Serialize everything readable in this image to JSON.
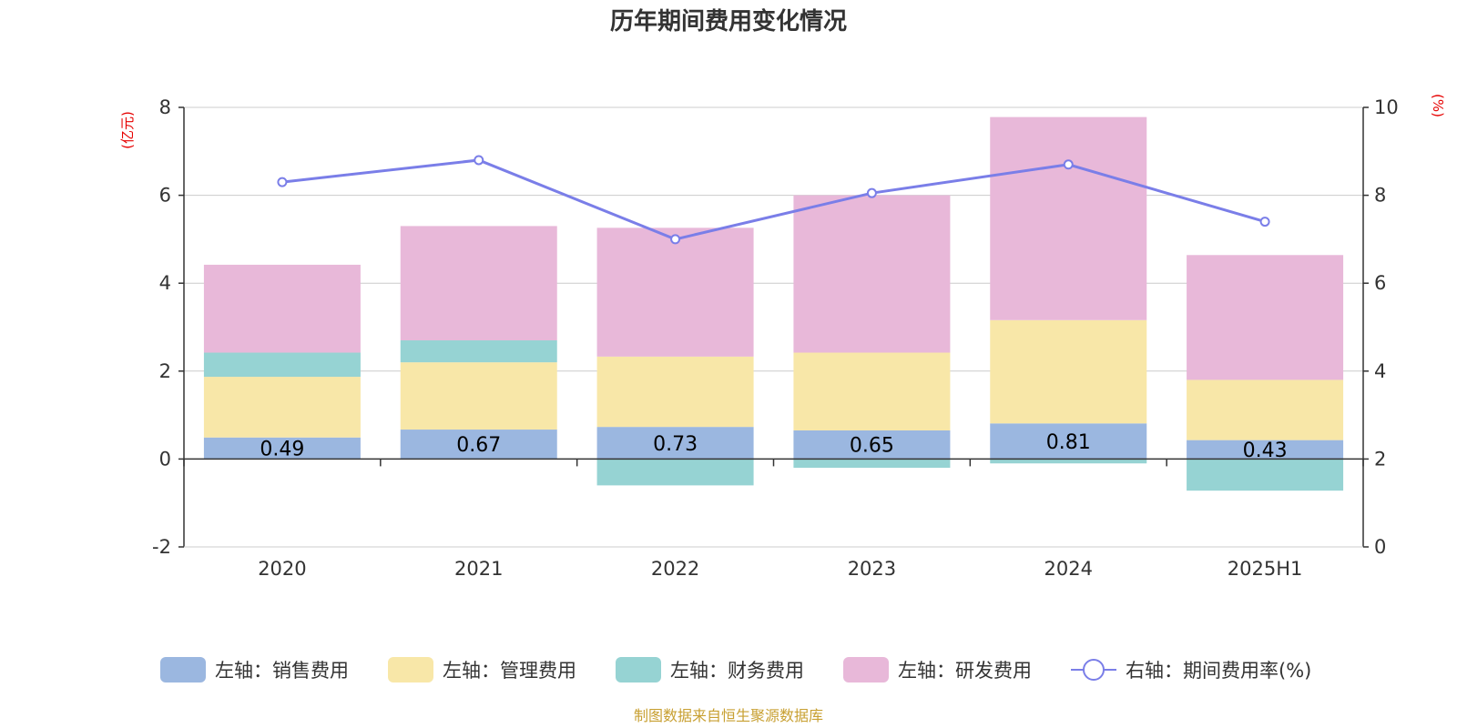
{
  "chart_data": {
    "type": "bar",
    "stacked": true,
    "title": "历年期间费用变化情况",
    "categories": [
      "2020",
      "2021",
      "2022",
      "2023",
      "2024",
      "2025H1"
    ],
    "y_left": {
      "unit": "(亿元)",
      "ylim": [
        -2,
        8
      ],
      "ticks": [
        -2,
        0,
        2,
        4,
        6,
        8
      ]
    },
    "y_right": {
      "unit": "(%)",
      "ylim": [
        0,
        10
      ],
      "ticks": [
        0,
        2,
        4,
        6,
        8,
        10
      ]
    },
    "series": [
      {
        "name": "左轴：销售费用",
        "type": "bar",
        "axis": "left",
        "color": "#9bb7e0",
        "values": [
          0.49,
          0.67,
          0.73,
          0.65,
          0.81,
          0.43
        ],
        "labels": [
          "0.49",
          "0.67",
          "0.73",
          "0.65",
          "0.81",
          "0.43"
        ]
      },
      {
        "name": "左轴：管理费用",
        "type": "bar",
        "axis": "left",
        "color": "#f8e7a8",
        "values": [
          1.38,
          1.53,
          1.6,
          1.77,
          2.35,
          1.37
        ]
      },
      {
        "name": "左轴：财务费用",
        "type": "bar",
        "axis": "left",
        "color": "#96d3d3",
        "values": [
          0.55,
          0.5,
          -0.6,
          -0.2,
          -0.1,
          -0.72
        ]
      },
      {
        "name": "左轴：研发费用",
        "type": "bar",
        "axis": "left",
        "color": "#e8b8d9",
        "values": [
          2.0,
          2.6,
          2.93,
          3.58,
          4.62,
          2.84
        ]
      },
      {
        "name": "右轴：期间费用率(%)",
        "type": "line",
        "axis": "right",
        "color": "#7a7ee8",
        "values": [
          8.3,
          8.8,
          7.0,
          8.05,
          8.7,
          7.4
        ]
      }
    ],
    "grid": true,
    "legend_position": "bottom"
  },
  "source_note": "制图数据来自恒生聚源数据库"
}
